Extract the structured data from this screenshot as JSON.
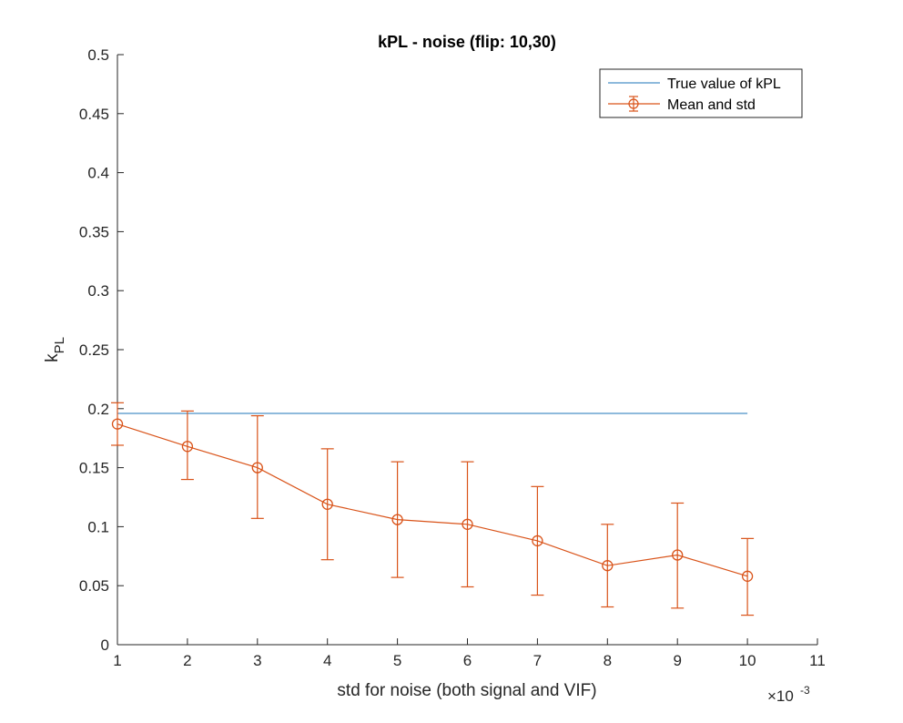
{
  "chart_data": {
    "type": "line",
    "title": "kPL - noise (flip: 10,30)",
    "xlabel": "std for noise (both signal and VIF)",
    "ylabel_main": "k",
    "ylabel_sub": "PL",
    "x_exponent_prefix": "×10",
    "x_exponent": "-3",
    "xlim": [
      1,
      11
    ],
    "ylim": [
      0,
      0.5
    ],
    "x_ticks": [
      1,
      2,
      3,
      4,
      5,
      6,
      7,
      8,
      9,
      10,
      11
    ],
    "x_tick_labels": [
      "1",
      "2",
      "3",
      "4",
      "5",
      "6",
      "7",
      "8",
      "9",
      "10",
      "11"
    ],
    "y_ticks": [
      0,
      0.05,
      0.1,
      0.15,
      0.2,
      0.25,
      0.3,
      0.35,
      0.4,
      0.45,
      0.5
    ],
    "y_tick_labels": [
      "0",
      "0.05",
      "0.1",
      "0.15",
      "0.2",
      "0.25",
      "0.3",
      "0.35",
      "0.4",
      "0.45",
      "0.5"
    ],
    "grid": false,
    "legend_position": "top-right",
    "series": [
      {
        "name": "True value of kPL",
        "kind": "line",
        "color": "#4A90C8",
        "x": [
          1,
          10
        ],
        "y": [
          0.196,
          0.196
        ]
      },
      {
        "name": "Mean and std",
        "kind": "errorbar",
        "marker": "circle",
        "color": "#D95319",
        "x": [
          1,
          2,
          3,
          4,
          5,
          6,
          7,
          8,
          9,
          10
        ],
        "y": [
          0.187,
          0.168,
          0.15,
          0.119,
          0.106,
          0.102,
          0.088,
          0.067,
          0.076,
          0.058
        ],
        "lower": [
          0.169,
          0.14,
          0.107,
          0.072,
          0.057,
          0.049,
          0.042,
          0.032,
          0.031,
          0.025
        ],
        "upper": [
          0.205,
          0.198,
          0.194,
          0.166,
          0.155,
          0.155,
          0.134,
          0.102,
          0.12,
          0.09
        ]
      }
    ]
  }
}
